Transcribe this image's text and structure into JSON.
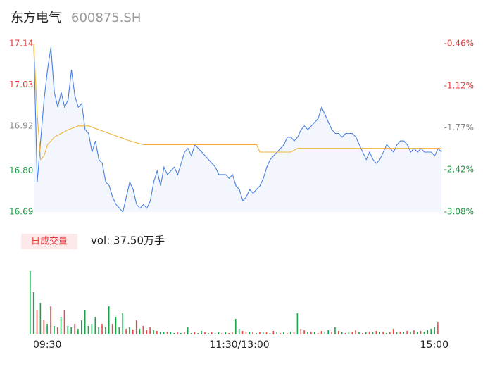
{
  "chart_data": [
    {
      "type": "line",
      "title": "东方电气",
      "subtitle": "600875.SH",
      "xlim": [
        0,
        240
      ],
      "ylim": [
        16.69,
        17.14
      ],
      "yticks": [
        17.14,
        17.03,
        16.92,
        {
          "value": 16.8,
          "label": "16.80"
        },
        16.69
      ],
      "ytick_colors": [
        "#e83b3b",
        "#e83b3b",
        "#888888",
        "#1f9d46",
        "#1f9d46"
      ],
      "y2lim": [
        -3.08,
        -0.46
      ],
      "y2ticks": [
        {
          "value": -0.46,
          "label": "-0.46%"
        },
        {
          "value": -1.12,
          "label": "-1.12%"
        },
        {
          "value": -1.77,
          "label": "-1.77%"
        },
        {
          "value": -2.42,
          "label": "-2.42%"
        },
        {
          "value": -3.08,
          "label": "-3.08%"
        }
      ],
      "y2tick_colors": [
        "#e83b3b",
        "#e83b3b",
        "#888888",
        "#1f9d46",
        "#1f9d46"
      ],
      "grid": false,
      "area_color": "#f3f7fd",
      "series": [
        {
          "color": "#4a7fe0",
          "x": [
            0,
            2,
            4,
            6,
            8,
            10,
            12,
            14,
            16,
            18,
            20,
            22,
            24,
            26,
            28,
            30,
            32,
            34,
            36,
            38,
            40,
            42,
            44,
            46,
            48,
            50,
            52,
            54,
            56,
            58,
            60,
            62,
            64,
            66,
            68,
            70,
            72,
            74,
            76,
            78,
            80,
            82,
            84,
            86,
            88,
            90,
            92,
            94,
            96,
            98,
            100,
            102,
            104,
            106,
            108,
            110,
            112,
            114,
            116,
            118,
            120,
            122,
            124,
            126,
            128,
            130,
            132,
            134,
            136,
            138,
            140,
            142,
            144,
            146,
            148,
            150,
            152,
            154,
            156,
            158,
            160,
            162,
            164,
            166,
            168,
            170,
            172,
            174,
            176,
            178,
            180,
            182,
            184,
            186,
            188,
            190,
            192,
            194,
            196,
            198,
            200,
            202,
            204,
            206,
            208,
            210,
            212,
            214,
            216,
            218,
            220,
            222,
            224,
            226,
            228,
            230,
            232,
            234,
            236,
            238
          ],
          "values": [
            17.14,
            16.77,
            16.88,
            16.99,
            17.07,
            17.13,
            17.01,
            16.97,
            17.01,
            16.97,
            16.99,
            17.07,
            17.0,
            16.97,
            16.98,
            16.91,
            16.9,
            16.85,
            16.88,
            16.83,
            16.82,
            16.77,
            16.76,
            16.73,
            16.71,
            16.7,
            16.69,
            16.73,
            16.77,
            16.75,
            16.71,
            16.7,
            16.71,
            16.7,
            16.72,
            16.77,
            16.8,
            16.76,
            16.81,
            16.79,
            16.8,
            16.81,
            16.79,
            16.82,
            16.85,
            16.86,
            16.84,
            16.87,
            16.86,
            16.85,
            16.84,
            16.83,
            16.82,
            16.81,
            16.79,
            16.79,
            16.79,
            16.78,
            16.79,
            16.76,
            16.75,
            16.72,
            16.73,
            16.75,
            16.74,
            16.75,
            16.76,
            16.78,
            16.81,
            16.83,
            16.84,
            16.85,
            16.86,
            16.87,
            16.89,
            16.89,
            16.88,
            16.89,
            16.91,
            16.92,
            16.91,
            16.92,
            16.93,
            16.94,
            16.97,
            16.95,
            16.93,
            16.91,
            16.9,
            16.9,
            16.89,
            16.9,
            16.9,
            16.9,
            16.89,
            16.87,
            16.85,
            16.83,
            16.85,
            16.83,
            16.82,
            16.83,
            16.85,
            16.87,
            16.86,
            16.85,
            16.87,
            16.88,
            16.88,
            16.87,
            16.85,
            16.86,
            16.85,
            16.86,
            16.85,
            16.85,
            16.85,
            16.84,
            16.86,
            16.85
          ]
        },
        {
          "color": "#f0b43c",
          "x": [
            0,
            2,
            4,
            6,
            8,
            12,
            16,
            20,
            26,
            32,
            38,
            44,
            50,
            56,
            64,
            72,
            80,
            100,
            130,
            132,
            150,
            154,
            200,
            238
          ],
          "values": [
            17.14,
            16.95,
            16.83,
            16.84,
            16.87,
            16.89,
            16.9,
            16.91,
            16.92,
            16.92,
            16.91,
            16.9,
            16.89,
            16.88,
            16.87,
            16.87,
            16.87,
            16.87,
            16.87,
            16.85,
            16.85,
            16.86,
            16.86,
            16.86
          ]
        }
      ]
    },
    {
      "type": "bar",
      "title": "日成交量",
      "subtitle": "vol: 37.50万手",
      "xlim": [
        0,
        240
      ],
      "xticks": [
        {
          "value": 0,
          "label": "09:30"
        },
        {
          "value": 120,
          "label": "11:30/13:00"
        },
        {
          "value": 240,
          "label": "15:00"
        }
      ],
      "ylim": [
        0,
        95
      ],
      "up_color": "#e84a4a",
      "down_color": "#1aa34a",
      "values": [
        90,
        60,
        35,
        45,
        20,
        15,
        40,
        12,
        10,
        25,
        35,
        12,
        10,
        15,
        8,
        20,
        35,
        12,
        15,
        25,
        10,
        15,
        10,
        40,
        15,
        25,
        10,
        30,
        8,
        10,
        7,
        20,
        8,
        12,
        6,
        10,
        6,
        5,
        4,
        3,
        4,
        3,
        2,
        3,
        2,
        3,
        10,
        2,
        3,
        2,
        5,
        3,
        2,
        3,
        2,
        3,
        2,
        3,
        2,
        3,
        22,
        8,
        5,
        3,
        4,
        3,
        2,
        3,
        4,
        3,
        2,
        5,
        3,
        2,
        3,
        2,
        4,
        3,
        30,
        8,
        6,
        3,
        4,
        3,
        2,
        5,
        3,
        6,
        4,
        10,
        5,
        3,
        2,
        4,
        3,
        6,
        3,
        2,
        3,
        4,
        3,
        5,
        3,
        4,
        2,
        3,
        8,
        3,
        4,
        3,
        5,
        4,
        6,
        3,
        5,
        4,
        6,
        8,
        10,
        18
      ],
      "up": [
        0,
        0,
        1,
        0,
        1,
        0,
        1,
        0,
        1,
        0,
        1,
        0,
        0,
        1,
        0,
        0,
        0,
        0,
        0,
        0,
        0,
        1,
        0,
        0,
        1,
        0,
        0,
        0,
        1,
        0,
        1,
        1,
        0,
        1,
        1,
        1,
        0,
        1,
        0,
        0,
        1,
        0,
        0,
        1,
        0,
        1,
        0,
        0,
        1,
        0,
        0,
        1,
        0,
        1,
        0,
        0,
        1,
        0,
        1,
        1,
        0,
        0,
        1,
        1,
        0,
        1,
        0,
        1,
        0,
        1,
        0,
        1,
        0,
        1,
        0,
        1,
        0,
        1,
        0,
        1,
        1,
        0,
        1,
        0,
        1,
        1,
        0,
        0,
        1,
        0,
        1,
        0,
        1,
        0,
        1,
        1,
        0,
        1,
        0,
        1,
        0,
        1,
        0,
        1,
        0,
        1,
        1,
        0,
        1,
        0,
        1,
        0,
        1,
        0,
        1,
        0,
        0,
        0,
        0,
        1
      ]
    }
  ]
}
